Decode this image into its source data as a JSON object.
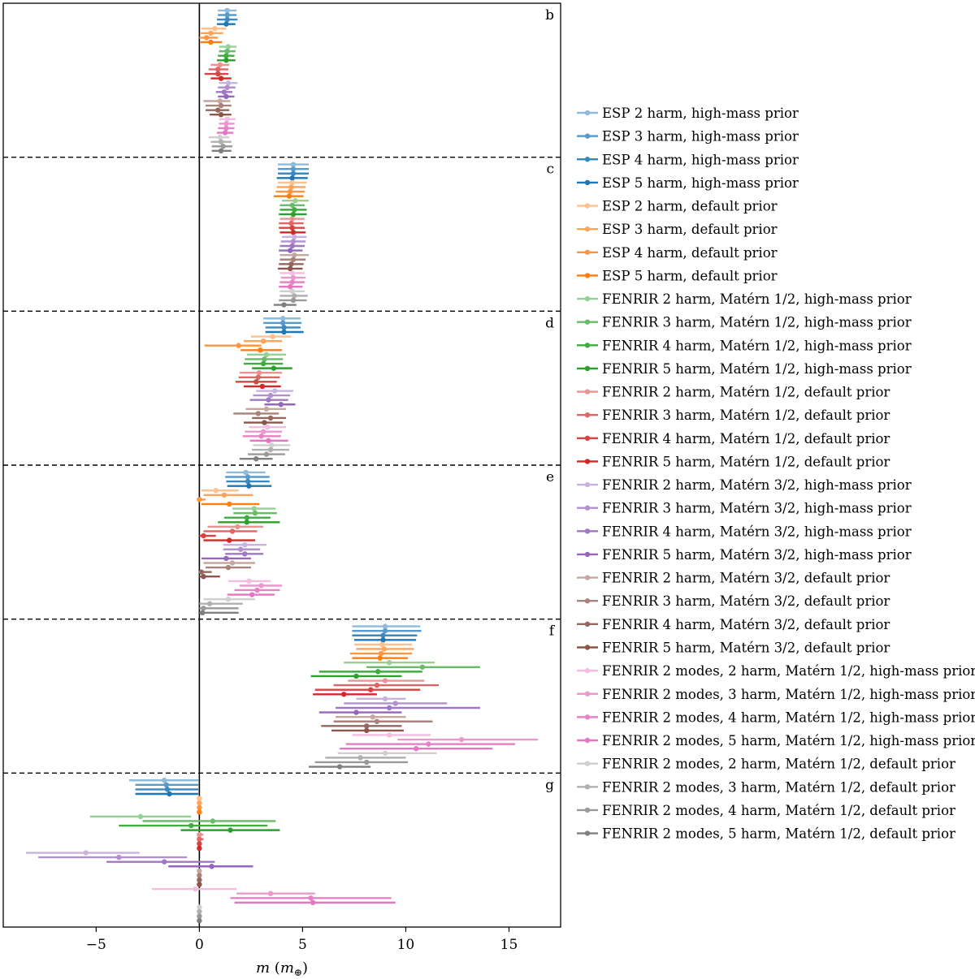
{
  "chart_data": {
    "type": "errorbar",
    "xlabel": {
      "var": "m",
      "unit_open": " (",
      "unit_var": "m",
      "unit_sub": "⊕",
      "unit_close": ")"
    },
    "xlim": [
      -9.5,
      17.5
    ],
    "xticks": [
      -5,
      0,
      5,
      10,
      15
    ],
    "xtick_labels": [
      "−5",
      "0",
      "5",
      "10",
      "15"
    ],
    "vertical_reference_line": 0,
    "panel_separators": "dashed",
    "legend_position": "right",
    "series": [
      {
        "name": "ESP 2 harm, high-mass prior",
        "color": "#8fbbda"
      },
      {
        "name": "ESP 3 harm, high-mass prior",
        "color": "#569bcc"
      },
      {
        "name": "ESP 4 harm, high-mass prior",
        "color": "#3b89c1"
      },
      {
        "name": "ESP 5 harm, high-mass prior",
        "color": "#1f77b4"
      },
      {
        "name": "ESP 2 harm, default prior",
        "color": "#ffc08b"
      },
      {
        "name": "ESP 3 harm, default prior",
        "color": "#ffa45a"
      },
      {
        "name": "ESP 4 harm, default prior",
        "color": "#ff9540"
      },
      {
        "name": "ESP 5 harm, default prior",
        "color": "#ff7f0e"
      },
      {
        "name": "FENRIR 2 harm, Matérn 1/2, high-mass prior",
        "color": "#96d096"
      },
      {
        "name": "FENRIR 3 harm, Matérn 1/2, high-mass prior",
        "color": "#68bb68"
      },
      {
        "name": "FENRIR 4 harm, Matérn 1/2, high-mass prior",
        "color": "#40ab40"
      },
      {
        "name": "FENRIR 5 harm, Matérn 1/2, high-mass prior",
        "color": "#2ca02c"
      },
      {
        "name": "FENRIR 2 harm, Matérn 1/2, default prior",
        "color": "#e99393"
      },
      {
        "name": "FENRIR 3 harm, Matérn 1/2, default prior",
        "color": "#e06566"
      },
      {
        "name": "FENRIR 4 harm, Matérn 1/2, default prior",
        "color": "#da4142"
      },
      {
        "name": "FENRIR 5 harm, Matérn 1/2, default prior",
        "color": "#d62728"
      },
      {
        "name": "FENRIR 2 harm, Matérn 3/2, high-mass prior",
        "color": "#c9b3de"
      },
      {
        "name": "FENRIR 3 harm, Matérn 3/2, high-mass prior",
        "color": "#b190cd"
      },
      {
        "name": "FENRIR 4 harm, Matérn 3/2, high-mass prior",
        "color": "#9f77c2"
      },
      {
        "name": "FENRIR 5 harm, Matérn 3/2, high-mass prior",
        "color": "#9467bd"
      },
      {
        "name": "FENRIR 2 harm, Matérn 3/2, default prior",
        "color": "#c4a7a1"
      },
      {
        "name": "FENRIR 3 harm, Matérn 3/2, default prior",
        "color": "#a9827b"
      },
      {
        "name": "FENRIR 4 harm, Matérn 3/2, default prior",
        "color": "#96675f"
      },
      {
        "name": "FENRIR 5 harm, Matérn 3/2, default prior",
        "color": "#8c564b"
      },
      {
        "name": "FENRIR 2 modes, 2 harm, Matérn 1/2, high-mass prior",
        "color": "#f4bce0"
      },
      {
        "name": "FENRIR 2 modes, 3 harm, Matérn 1/2, high-mass prior",
        "color": "#eb99cd"
      },
      {
        "name": "FENRIR 2 modes, 4 harm, Matérn 1/2, high-mass prior",
        "color": "#e683c4"
      },
      {
        "name": "FENRIR 2 modes, 5 harm, Matérn 1/2, high-mass prior",
        "color": "#e377c2"
      },
      {
        "name": "FENRIR 2 modes, 2 harm, Matérn 1/2, default prior",
        "color": "#cfcfcf"
      },
      {
        "name": "FENRIR 2 modes, 3 harm, Matérn 1/2, default prior",
        "color": "#b0b0b0"
      },
      {
        "name": "FENRIR 2 modes, 4 harm, Matérn 1/2, default prior",
        "color": "#999999"
      },
      {
        "name": "FENRIR 2 modes, 5 harm, Matérn 1/2, default prior",
        "color": "#7f7f7f"
      }
    ],
    "panels": [
      {
        "label": "b",
        "points": [
          [
            1.35,
            0.9,
            1.8
          ],
          [
            1.35,
            0.9,
            1.8
          ],
          [
            1.35,
            0.85,
            1.85
          ],
          [
            1.3,
            0.85,
            1.75
          ],
          [
            0.75,
            0.1,
            1.3
          ],
          [
            0.55,
            0.05,
            1.15
          ],
          [
            0.35,
            0.0,
            0.9
          ],
          [
            0.55,
            0.05,
            1.1
          ],
          [
            1.4,
            0.95,
            1.8
          ],
          [
            1.35,
            0.95,
            1.75
          ],
          [
            1.3,
            0.9,
            1.7
          ],
          [
            1.3,
            0.85,
            1.75
          ],
          [
            1.0,
            0.55,
            1.45
          ],
          [
            0.9,
            0.45,
            1.4
          ],
          [
            0.9,
            0.25,
            1.4
          ],
          [
            1.05,
            0.55,
            1.55
          ],
          [
            1.4,
            0.95,
            1.85
          ],
          [
            1.35,
            0.9,
            1.75
          ],
          [
            1.2,
            0.8,
            1.6
          ],
          [
            1.3,
            0.9,
            1.7
          ],
          [
            1.0,
            0.2,
            1.5
          ],
          [
            1.05,
            0.3,
            1.55
          ],
          [
            0.9,
            0.3,
            1.45
          ],
          [
            1.05,
            0.5,
            1.55
          ],
          [
            1.35,
            0.95,
            1.75
          ],
          [
            1.3,
            0.95,
            1.7
          ],
          [
            1.3,
            0.9,
            1.7
          ],
          [
            1.25,
            0.85,
            1.65
          ],
          [
            1.0,
            0.45,
            1.45
          ],
          [
            1.05,
            0.55,
            1.55
          ],
          [
            1.15,
            0.6,
            1.6
          ],
          [
            1.05,
            0.6,
            1.55
          ]
        ]
      },
      {
        "label": "c",
        "points": [
          [
            4.55,
            3.8,
            5.3
          ],
          [
            4.55,
            3.8,
            5.3
          ],
          [
            4.55,
            3.8,
            5.3
          ],
          [
            4.5,
            3.75,
            5.25
          ],
          [
            4.5,
            3.8,
            5.2
          ],
          [
            4.45,
            3.75,
            5.15
          ],
          [
            4.4,
            3.7,
            5.1
          ],
          [
            4.35,
            3.6,
            5.05
          ],
          [
            4.65,
            4.0,
            5.3
          ],
          [
            4.5,
            3.9,
            5.1
          ],
          [
            4.6,
            3.9,
            5.2
          ],
          [
            4.55,
            3.85,
            5.2
          ],
          [
            4.5,
            3.9,
            5.1
          ],
          [
            4.45,
            3.85,
            5.05
          ],
          [
            4.5,
            3.85,
            5.1
          ],
          [
            4.55,
            3.9,
            5.15
          ],
          [
            4.6,
            4.0,
            5.2
          ],
          [
            4.55,
            3.95,
            5.15
          ],
          [
            4.5,
            3.9,
            5.1
          ],
          [
            4.4,
            3.85,
            5.0
          ],
          [
            4.6,
            3.9,
            5.3
          ],
          [
            4.55,
            3.9,
            5.15
          ],
          [
            4.45,
            3.85,
            5.05
          ],
          [
            4.4,
            3.8,
            5.0
          ],
          [
            4.5,
            3.9,
            5.1
          ],
          [
            4.55,
            3.95,
            5.15
          ],
          [
            4.5,
            3.9,
            5.1
          ],
          [
            4.4,
            3.85,
            5.0
          ],
          [
            4.5,
            3.9,
            5.1
          ],
          [
            4.6,
            3.9,
            5.25
          ],
          [
            4.55,
            3.85,
            5.2
          ],
          [
            4.1,
            3.6,
            4.7
          ]
        ]
      },
      {
        "label": "d",
        "points": [
          [
            4.05,
            3.1,
            4.9
          ],
          [
            4.05,
            3.1,
            4.95
          ],
          [
            4.1,
            3.2,
            4.9
          ],
          [
            4.1,
            3.2,
            5.05
          ],
          [
            3.55,
            2.5,
            4.45
          ],
          [
            3.1,
            2.15,
            4.0
          ],
          [
            1.9,
            0.25,
            3.0
          ],
          [
            2.95,
            2.0,
            4.0
          ],
          [
            3.25,
            2.3,
            4.2
          ],
          [
            3.15,
            2.2,
            4.05
          ],
          [
            3.1,
            2.15,
            4.05
          ],
          [
            3.6,
            2.55,
            4.5
          ],
          [
            2.9,
            1.95,
            4.0
          ],
          [
            2.85,
            1.9,
            3.9
          ],
          [
            2.75,
            1.75,
            3.75
          ],
          [
            3.05,
            2.15,
            3.95
          ],
          [
            3.65,
            2.75,
            4.55
          ],
          [
            3.45,
            2.6,
            4.4
          ],
          [
            3.35,
            2.45,
            4.3
          ],
          [
            3.95,
            3.15,
            4.65
          ],
          [
            3.25,
            2.25,
            4.2
          ],
          [
            2.85,
            1.65,
            3.85
          ],
          [
            3.45,
            2.55,
            4.2
          ],
          [
            3.15,
            2.15,
            4.05
          ],
          [
            3.3,
            2.4,
            4.2
          ],
          [
            3.1,
            2.2,
            4.0
          ],
          [
            3.0,
            2.1,
            3.95
          ],
          [
            3.35,
            2.45,
            4.3
          ],
          [
            3.5,
            2.6,
            4.4
          ],
          [
            3.45,
            2.55,
            4.35
          ],
          [
            3.25,
            2.35,
            4.15
          ],
          [
            2.75,
            1.95,
            3.55
          ]
        ]
      },
      {
        "label": "e",
        "points": [
          [
            2.25,
            1.3,
            3.2
          ],
          [
            2.35,
            1.25,
            3.4
          ],
          [
            2.35,
            1.3,
            3.4
          ],
          [
            2.4,
            1.35,
            3.5
          ],
          [
            0.8,
            0.1,
            1.9
          ],
          [
            1.2,
            0.2,
            2.6
          ],
          [
            0.0,
            0.0,
            0.3
          ],
          [
            1.45,
            0.1,
            2.9
          ],
          [
            2.65,
            1.6,
            3.7
          ],
          [
            2.7,
            1.65,
            3.75
          ],
          [
            2.3,
            1.2,
            3.45
          ],
          [
            2.3,
            0.9,
            3.9
          ],
          [
            1.85,
            0.4,
            3.1
          ],
          [
            1.6,
            0.2,
            2.8
          ],
          [
            0.2,
            0.0,
            0.8
          ],
          [
            1.45,
            0.2,
            2.7
          ],
          [
            2.2,
            1.15,
            3.25
          ],
          [
            2.0,
            1.15,
            2.95
          ],
          [
            2.2,
            1.25,
            3.1
          ],
          [
            1.3,
            0.1,
            2.5
          ],
          [
            1.6,
            0.2,
            2.7
          ],
          [
            1.4,
            0.3,
            2.5
          ],
          [
            0.1,
            0.0,
            0.6
          ],
          [
            0.2,
            0.0,
            1.0
          ],
          [
            2.4,
            1.4,
            3.45
          ],
          [
            3.0,
            1.95,
            4.0
          ],
          [
            2.8,
            1.7,
            3.9
          ],
          [
            2.55,
            1.35,
            3.65
          ],
          [
            1.4,
            0.2,
            2.7
          ],
          [
            0.5,
            0.0,
            2.1
          ],
          [
            0.2,
            0.0,
            1.9
          ],
          [
            0.15,
            0.0,
            1.9
          ]
        ]
      },
      {
        "label": "f",
        "points": [
          [
            9.0,
            7.4,
            10.7
          ],
          [
            9.0,
            7.4,
            10.75
          ],
          [
            8.9,
            7.4,
            10.55
          ],
          [
            8.9,
            7.5,
            10.5
          ],
          [
            8.85,
            7.5,
            10.3
          ],
          [
            8.95,
            7.6,
            10.4
          ],
          [
            8.8,
            7.3,
            10.3
          ],
          [
            8.75,
            7.4,
            10.1
          ],
          [
            9.2,
            7.0,
            11.4
          ],
          [
            10.8,
            8.1,
            13.6
          ],
          [
            8.65,
            5.8,
            10.8
          ],
          [
            7.6,
            5.4,
            9.8
          ],
          [
            9.0,
            7.2,
            10.9
          ],
          [
            8.6,
            6.5,
            11.6
          ],
          [
            8.3,
            5.6,
            10.7
          ],
          [
            7.0,
            5.5,
            8.6
          ],
          [
            9.0,
            7.6,
            10.0
          ],
          [
            9.5,
            7.0,
            12.0
          ],
          [
            9.2,
            6.6,
            13.6
          ],
          [
            7.6,
            5.8,
            9.8
          ],
          [
            8.4,
            6.6,
            10.0
          ],
          [
            8.6,
            6.5,
            11.3
          ],
          [
            8.1,
            5.9,
            9.8
          ],
          [
            8.1,
            6.4,
            9.9
          ],
          [
            9.2,
            7.4,
            11.2
          ],
          [
            12.7,
            9.6,
            16.4
          ],
          [
            11.1,
            7.1,
            15.3
          ],
          [
            10.5,
            6.8,
            14.2
          ],
          [
            9.0,
            6.7,
            11.5
          ],
          [
            7.8,
            6.1,
            10.0
          ],
          [
            8.1,
            5.6,
            10.1
          ],
          [
            6.8,
            5.3,
            8.3
          ]
        ]
      },
      {
        "label": "g",
        "points": [
          [
            -1.7,
            -3.4,
            -0.05
          ],
          [
            -1.6,
            -3.1,
            -0.05
          ],
          [
            -1.55,
            -3.1,
            -0.05
          ],
          [
            -1.45,
            -3.1,
            -0.05
          ],
          [
            0.0,
            -0.05,
            0.1
          ],
          [
            0.0,
            -0.05,
            0.1
          ],
          [
            0.0,
            -0.05,
            0.1
          ],
          [
            0.0,
            -0.05,
            0.1
          ],
          [
            -2.85,
            -5.3,
            -0.4
          ],
          [
            0.65,
            -2.75,
            3.7
          ],
          [
            -0.4,
            -3.9,
            3.3
          ],
          [
            1.5,
            -0.9,
            3.9
          ],
          [
            0.0,
            -0.05,
            0.2
          ],
          [
            0.0,
            -0.05,
            0.2
          ],
          [
            0.0,
            -0.05,
            0.1
          ],
          [
            0.0,
            -0.05,
            0.1
          ],
          [
            -5.5,
            -8.4,
            -2.9
          ],
          [
            -3.9,
            -7.8,
            -0.6
          ],
          [
            -1.7,
            -4.5,
            0.75
          ],
          [
            0.6,
            -1.5,
            2.6
          ],
          [
            0.0,
            -0.05,
            0.1
          ],
          [
            0.0,
            -0.05,
            0.1
          ],
          [
            0.0,
            -0.05,
            0.1
          ],
          [
            0.0,
            -0.05,
            0.1
          ],
          [
            -0.2,
            -2.3,
            1.8
          ],
          [
            3.45,
            1.8,
            5.6
          ],
          [
            5.4,
            1.5,
            9.3
          ],
          [
            5.5,
            1.7,
            9.5
          ],
          [
            0.0,
            -0.05,
            0.1
          ],
          [
            0.0,
            -0.05,
            0.1
          ],
          [
            0.0,
            -0.05,
            0.1
          ],
          [
            0.0,
            -0.05,
            0.1
          ]
        ]
      }
    ]
  }
}
